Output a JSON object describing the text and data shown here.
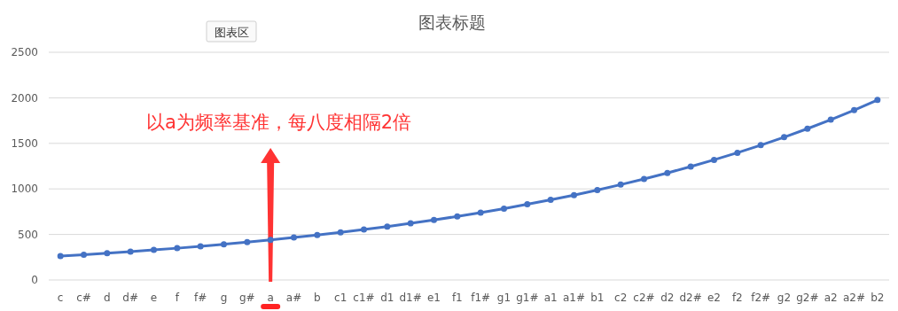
{
  "chart_data": {
    "type": "line",
    "title": "图表标题",
    "categories": [
      "c",
      "c#",
      "d",
      "d#",
      "e",
      "f",
      "f#",
      "g",
      "g#",
      "a",
      "a#",
      "b",
      "c1",
      "c1#",
      "d1",
      "d1#",
      "e1",
      "f1",
      "f1#",
      "g1",
      "g1#",
      "a1",
      "a1#",
      "b1",
      "c2",
      "c2#",
      "d2",
      "d2#",
      "e2",
      "f2",
      "f2#",
      "g2",
      "g2#",
      "a2",
      "a2#",
      "b2"
    ],
    "series": [
      {
        "color": "#4472c4",
        "values": [
          262,
          277,
          294,
          311,
          330,
          349,
          370,
          392,
          415,
          440,
          466,
          494,
          523,
          554,
          587,
          622,
          659,
          698,
          740,
          784,
          831,
          880,
          932,
          988,
          1047,
          1109,
          1175,
          1245,
          1319,
          1397,
          1480,
          1568,
          1661,
          1760,
          1865,
          1976
        ]
      }
    ],
    "ylim": [
      0,
      2500
    ],
    "yticks": [
      0,
      500,
      1000,
      1500,
      2000,
      2500
    ],
    "grid": "y",
    "marker": "circle",
    "line_style": "solid",
    "annotations": [
      "以a为频率基准，每八度相隔2倍",
      "图表区"
    ]
  }
}
